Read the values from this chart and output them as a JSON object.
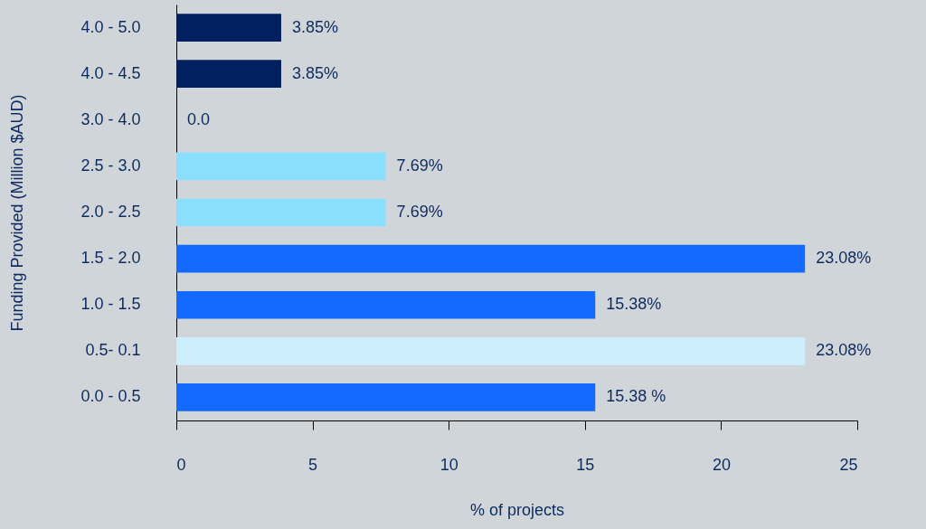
{
  "chart_data": {
    "type": "bar",
    "orientation": "horizontal",
    "categories": [
      "4.0 - 5.0",
      "4.0 - 4.5",
      "3.0 - 4.0",
      "2.5 - 3.0",
      "2.0 - 2.5",
      "1.5 - 2.0",
      "1.0 - 1.5",
      "0.5- 0.1",
      "0.0 - 0.5"
    ],
    "values": [
      3.85,
      3.85,
      0.0,
      7.69,
      7.69,
      23.08,
      15.38,
      23.08,
      15.38
    ],
    "colors": [
      "#002060",
      "#002060",
      "#002060",
      "#8adfff",
      "#8adfff",
      "#1469ff",
      "#1469ff",
      "#cdeefc",
      "#1469ff"
    ],
    "value_labels": [
      "3.85%",
      "3.85%",
      "0.0",
      "7.69%",
      "7.69%",
      "23.08%",
      "15.38%",
      "23.08%",
      "15.38 %"
    ],
    "xlabel": "% of projects",
    "ylabel": "Funding Provided (Million $AUD)",
    "xlim": [
      0,
      25
    ],
    "xticks": [
      0,
      5,
      10,
      15,
      20,
      25
    ],
    "grid": false
  }
}
